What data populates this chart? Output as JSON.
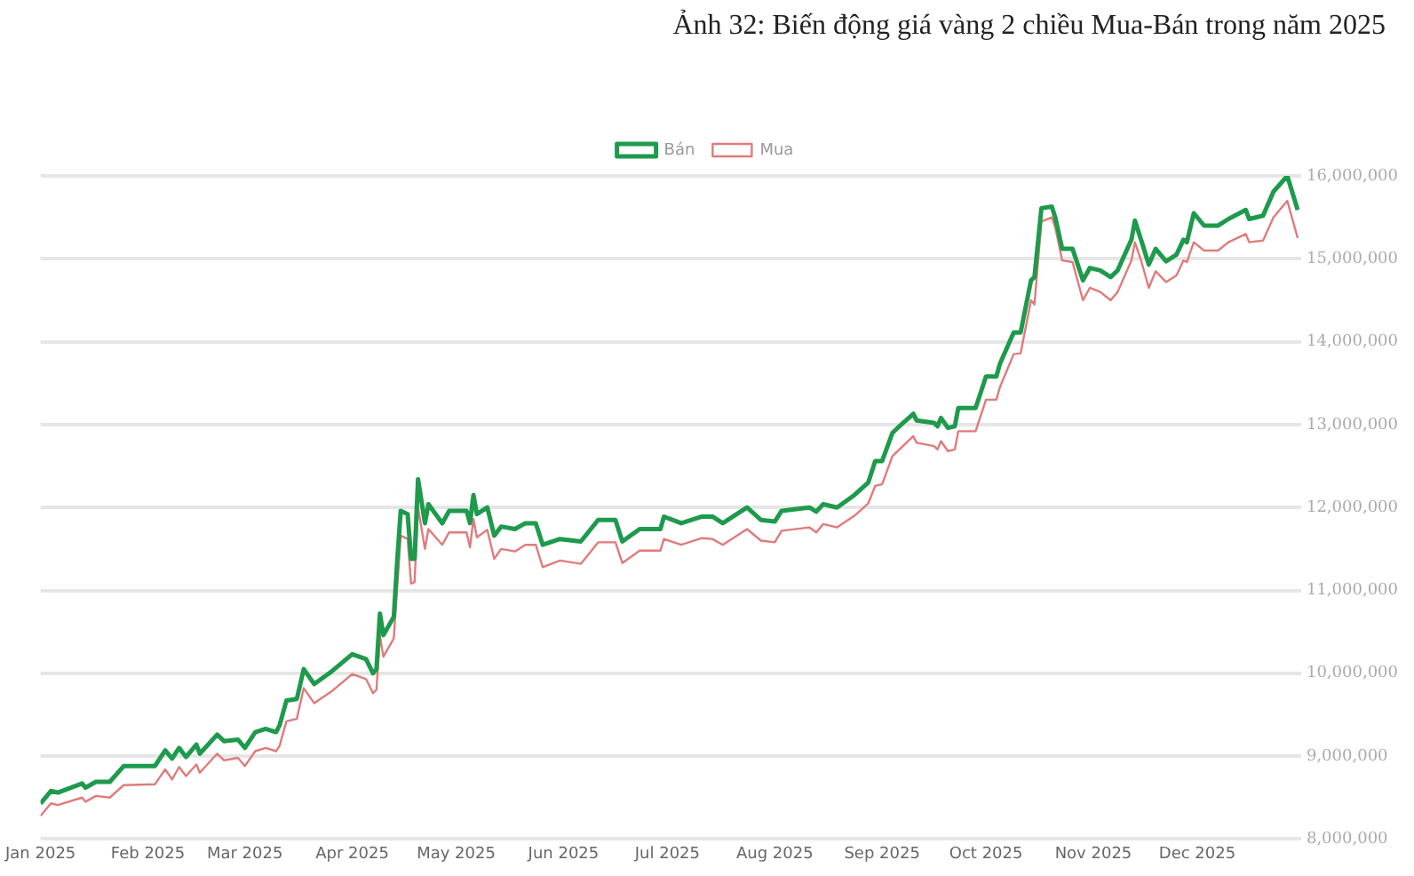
{
  "chart_data": {
    "type": "line",
    "title": "Ảnh 32: Biến động giá vàng 2 chiều Mua-Bán trong năm 2025",
    "x": [
      "2025-01-01",
      "2025-01-04",
      "2025-01-06",
      "2025-01-13",
      "2025-01-14",
      "2025-01-17",
      "2025-01-21",
      "2025-01-25",
      "2025-02-03",
      "2025-02-06",
      "2025-02-08",
      "2025-02-10",
      "2025-02-12",
      "2025-02-15",
      "2025-02-16",
      "2025-02-21",
      "2025-02-23",
      "2025-02-27",
      "2025-03-01",
      "2025-03-04",
      "2025-03-07",
      "2025-03-10",
      "2025-03-11",
      "2025-03-13",
      "2025-03-16",
      "2025-03-18",
      "2025-03-21",
      "2025-03-26",
      "2025-04-01",
      "2025-04-05",
      "2025-04-07",
      "2025-04-08",
      "2025-04-09",
      "2025-04-10",
      "2025-04-13",
      "2025-04-14",
      "2025-04-15",
      "2025-04-17",
      "2025-04-18",
      "2025-04-19",
      "2025-04-20",
      "2025-04-22",
      "2025-04-23",
      "2025-04-27",
      "2025-04-29",
      "2025-05-04",
      "2025-05-05",
      "2025-05-06",
      "2025-05-07",
      "2025-05-10",
      "2025-05-12",
      "2025-05-14",
      "2025-05-18",
      "2025-05-21",
      "2025-05-24",
      "2025-05-26",
      "2025-05-31",
      "2025-06-06",
      "2025-06-11",
      "2025-06-16",
      "2025-06-18",
      "2025-06-23",
      "2025-06-29",
      "2025-06-30",
      "2025-07-05",
      "2025-07-11",
      "2025-07-14",
      "2025-07-17",
      "2025-07-24",
      "2025-07-28",
      "2025-08-01",
      "2025-08-03",
      "2025-08-11",
      "2025-08-13",
      "2025-08-15",
      "2025-08-19",
      "2025-08-24",
      "2025-08-28",
      "2025-08-30",
      "2025-09-01",
      "2025-09-04",
      "2025-09-06",
      "2025-09-10",
      "2025-09-11",
      "2025-09-16",
      "2025-09-17",
      "2025-09-18",
      "2025-09-20",
      "2025-09-22",
      "2025-09-23",
      "2025-09-28",
      "2025-10-01",
      "2025-10-04",
      "2025-10-05",
      "2025-10-07",
      "2025-10-09",
      "2025-10-11",
      "2025-10-14",
      "2025-10-15",
      "2025-10-17",
      "2025-10-20",
      "2025-10-21",
      "2025-10-23",
      "2025-10-26",
      "2025-10-29",
      "2025-10-31",
      "2025-11-03",
      "2025-11-06",
      "2025-11-08",
      "2025-11-12",
      "2025-11-13",
      "2025-11-15",
      "2025-11-17",
      "2025-11-19",
      "2025-11-22",
      "2025-11-25",
      "2025-11-27",
      "2025-11-28",
      "2025-11-30",
      "2025-12-03",
      "2025-12-07",
      "2025-12-10",
      "2025-12-15",
      "2025-12-16",
      "2025-12-20",
      "2025-12-23",
      "2025-12-27",
      "2025-12-30"
    ],
    "series": [
      {
        "name": "Bán",
        "color": "#1e9a4c",
        "values": [
          8430000,
          8580000,
          8560000,
          8670000,
          8620000,
          8690000,
          8690000,
          8880000,
          8880000,
          9070000,
          8970000,
          9100000,
          8990000,
          9140000,
          9030000,
          9260000,
          9180000,
          9200000,
          9100000,
          9290000,
          9330000,
          9290000,
          9370000,
          9670000,
          9690000,
          10050000,
          9870000,
          10020000,
          10230000,
          10170000,
          10000000,
          10050000,
          10720000,
          10460000,
          10680000,
          11360000,
          11960000,
          11920000,
          11380000,
          11380000,
          12340000,
          11810000,
          12040000,
          11810000,
          11960000,
          11960000,
          11810000,
          12150000,
          11920000,
          12000000,
          11660000,
          11770000,
          11740000,
          11810000,
          11810000,
          11550000,
          11620000,
          11590000,
          11850000,
          11850000,
          11590000,
          11740000,
          11740000,
          11890000,
          11810000,
          11890000,
          11890000,
          11810000,
          12000000,
          11850000,
          11830000,
          11960000,
          12000000,
          11950000,
          12040000,
          12000000,
          12150000,
          12300000,
          12560000,
          12560000,
          12900000,
          12980000,
          13130000,
          13050000,
          13020000,
          12980000,
          13080000,
          12960000,
          12980000,
          13200000,
          13200000,
          13580000,
          13580000,
          13730000,
          13920000,
          14110000,
          14110000,
          14740000,
          14780000,
          15610000,
          15630000,
          15500000,
          15120000,
          15120000,
          14740000,
          14890000,
          14860000,
          14780000,
          14860000,
          15230000,
          15460000,
          15200000,
          14930000,
          15120000,
          14970000,
          15050000,
          15230000,
          15200000,
          15550000,
          15400000,
          15400000,
          15480000,
          15590000,
          15480000,
          15520000,
          15810000,
          16000000,
          15590000
        ]
      },
      {
        "name": "Mua",
        "color": "#e07b7b",
        "values": [
          8280000,
          8430000,
          8410000,
          8500000,
          8450000,
          8520000,
          8500000,
          8650000,
          8660000,
          8840000,
          8720000,
          8870000,
          8760000,
          8900000,
          8800000,
          9030000,
          8950000,
          8980000,
          8880000,
          9060000,
          9100000,
          9060000,
          9120000,
          9420000,
          9450000,
          9820000,
          9640000,
          9780000,
          9990000,
          9930000,
          9760000,
          9800000,
          10450000,
          10200000,
          10420000,
          11050000,
          11660000,
          11620000,
          11080000,
          11100000,
          12000000,
          11500000,
          11740000,
          11550000,
          11700000,
          11700000,
          11520000,
          11860000,
          11640000,
          11730000,
          11380000,
          11500000,
          11470000,
          11550000,
          11550000,
          11280000,
          11360000,
          11320000,
          11580000,
          11580000,
          11330000,
          11480000,
          11480000,
          11620000,
          11550000,
          11630000,
          11620000,
          11550000,
          11740000,
          11600000,
          11580000,
          11720000,
          11760000,
          11700000,
          11800000,
          11760000,
          11900000,
          12050000,
          12260000,
          12280000,
          12620000,
          12700000,
          12860000,
          12780000,
          12740000,
          12700000,
          12800000,
          12680000,
          12700000,
          12920000,
          12920000,
          13300000,
          13300000,
          13450000,
          13650000,
          13850000,
          13860000,
          14500000,
          14450000,
          15450000,
          15500000,
          15380000,
          14980000,
          14960000,
          14500000,
          14650000,
          14600000,
          14500000,
          14600000,
          14980000,
          15200000,
          14950000,
          14650000,
          14850000,
          14720000,
          14800000,
          14980000,
          14960000,
          15200000,
          15100000,
          15100000,
          15200000,
          15300000,
          15200000,
          15220000,
          15500000,
          15700000,
          15250000
        ]
      }
    ],
    "xlim": [
      "2025-01-01",
      "2025-12-31"
    ],
    "xticks": [
      {
        "value": "2025-01-01",
        "label": "Jan 2025"
      },
      {
        "value": "2025-02-01",
        "label": "Feb 2025"
      },
      {
        "value": "2025-03-01",
        "label": "Mar 2025"
      },
      {
        "value": "2025-04-01",
        "label": "Apr 2025"
      },
      {
        "value": "2025-05-01",
        "label": "May 2025"
      },
      {
        "value": "2025-06-01",
        "label": "Jun 2025"
      },
      {
        "value": "2025-07-01",
        "label": "Jul 2025"
      },
      {
        "value": "2025-08-01",
        "label": "Aug 2025"
      },
      {
        "value": "2025-09-01",
        "label": "Sep 2025"
      },
      {
        "value": "2025-10-01",
        "label": "Oct 2025"
      },
      {
        "value": "2025-11-01",
        "label": "Nov 2025"
      },
      {
        "value": "2025-12-01",
        "label": "Dec 2025"
      }
    ],
    "ylim": [
      8000000,
      16000000
    ],
    "yticks": [
      {
        "value": 8000000,
        "label": "8,000,000"
      },
      {
        "value": 9000000,
        "label": "9,000,000"
      },
      {
        "value": 10000000,
        "label": "10,000,000"
      },
      {
        "value": 11000000,
        "label": "11,000,000"
      },
      {
        "value": 12000000,
        "label": "12,000,000"
      },
      {
        "value": 13000000,
        "label": "13,000,000"
      },
      {
        "value": 14000000,
        "label": "14,000,000"
      },
      {
        "value": 15000000,
        "label": "15,000,000"
      },
      {
        "value": 16000000,
        "label": "16,000,000"
      }
    ],
    "grid": "y",
    "legend": "top",
    "marker": "none",
    "line_style": "solid"
  }
}
